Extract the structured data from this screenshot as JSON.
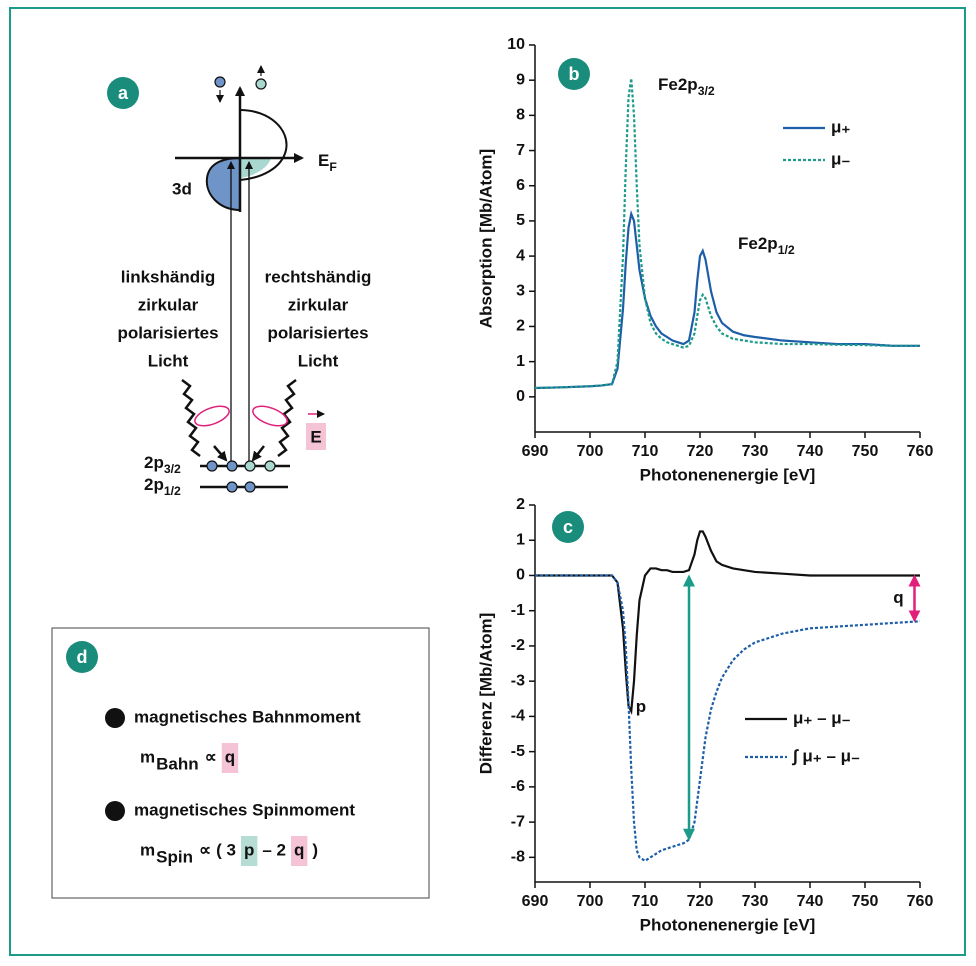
{
  "diagram": {
    "label": "a",
    "fermi": {
      "main": "E",
      "sub": "F"
    },
    "band": "3d",
    "left_light": [
      "linkshändig",
      "zirkular",
      "polarisiertes",
      "Licht"
    ],
    "right_light": [
      "rechtshändig",
      "zirkular",
      "polarisiertes",
      "Licht"
    ],
    "field": "E",
    "levels": [
      {
        "main": "2p",
        "sub": "3/2"
      },
      {
        "main": "2p",
        "sub": "1/2"
      }
    ]
  },
  "chart_data": [
    {
      "type": "line",
      "label": "b",
      "xlabel": "Photonenenergie [eV]",
      "ylabel": "Absorption [Mb/Atom]",
      "x": [
        690,
        695,
        700,
        702,
        704,
        705,
        706,
        706.5,
        707,
        707.5,
        708,
        708.5,
        709,
        710,
        711,
        712,
        713,
        714,
        715,
        716,
        717,
        718,
        719,
        719.5,
        720,
        720.5,
        721,
        722,
        723,
        724,
        726,
        728,
        730,
        735,
        740,
        745,
        750,
        755,
        760
      ],
      "xlim": [
        690,
        760
      ],
      "xticks": [
        690,
        700,
        710,
        720,
        730,
        740,
        750,
        760
      ],
      "ylim": [
        -1,
        10
      ],
      "yticks": [
        0,
        1,
        2,
        3,
        4,
        5,
        6,
        7,
        8,
        9,
        10
      ],
      "series": [
        {
          "name": "μ₊",
          "color": "#1d5ea8",
          "dash": false,
          "values": [
            0.25,
            0.27,
            0.3,
            0.32,
            0.36,
            0.8,
            2.5,
            3.8,
            4.8,
            5.2,
            5.0,
            4.3,
            3.6,
            2.8,
            2.3,
            2.0,
            1.8,
            1.7,
            1.6,
            1.55,
            1.5,
            1.6,
            2.4,
            3.3,
            4.0,
            4.15,
            3.9,
            3.0,
            2.4,
            2.1,
            1.85,
            1.75,
            1.7,
            1.6,
            1.55,
            1.5,
            1.5,
            1.45,
            1.45
          ]
        },
        {
          "name": "μ₋",
          "color": "#1c9a8a",
          "dash": true,
          "values": [
            0.25,
            0.27,
            0.3,
            0.32,
            0.36,
            1.0,
            4.0,
            6.5,
            8.5,
            9.05,
            8.0,
            6.0,
            4.3,
            2.8,
            2.1,
            1.8,
            1.65,
            1.55,
            1.5,
            1.45,
            1.4,
            1.45,
            1.8,
            2.3,
            2.75,
            2.9,
            2.8,
            2.3,
            2.0,
            1.8,
            1.65,
            1.6,
            1.55,
            1.5,
            1.5,
            1.48,
            1.47,
            1.45,
            1.45
          ]
        }
      ],
      "annotations": [
        {
          "text": "Fe2p",
          "sub": "3/2"
        },
        {
          "text": "Fe2p",
          "sub": "1/2"
        }
      ]
    },
    {
      "type": "line",
      "label": "c",
      "xlabel": "Photonenenergie [eV]",
      "ylabel": "Differenz [Mb/Atom]",
      "x": [
        690,
        695,
        700,
        702,
        704,
        705,
        706,
        706.5,
        707,
        707.5,
        708,
        708.5,
        709,
        710,
        711,
        712,
        713,
        714,
        715,
        716,
        717,
        718,
        719,
        719.5,
        720,
        720.5,
        721,
        722,
        723,
        724,
        726,
        728,
        730,
        735,
        740,
        745,
        750,
        755,
        760
      ],
      "xlim": [
        690,
        760
      ],
      "xticks": [
        690,
        700,
        710,
        720,
        730,
        740,
        750,
        760
      ],
      "ylim": [
        -8.7,
        2
      ],
      "yticks": [
        -8,
        -7,
        -6,
        -5,
        -4,
        -3,
        -2,
        -1,
        0,
        1,
        2
      ],
      "series": [
        {
          "name": "μ₊ – μ₋",
          "color": "#111111",
          "dash": false,
          "values": [
            0,
            0,
            0,
            0,
            0,
            -0.2,
            -1.5,
            -2.7,
            -3.7,
            -3.85,
            -3.0,
            -1.7,
            -0.7,
            0,
            0.2,
            0.2,
            0.15,
            0.15,
            0.1,
            0.1,
            0.1,
            0.15,
            0.6,
            1.0,
            1.25,
            1.25,
            1.1,
            0.7,
            0.4,
            0.3,
            0.2,
            0.15,
            0.1,
            0.05,
            0,
            0,
            0,
            0,
            0
          ]
        },
        {
          "name": "∫ μ₊ – μ₋",
          "color": "#1d5ea8",
          "dash": true,
          "values": [
            0,
            0,
            0,
            0,
            0,
            -0.2,
            -1.0,
            -2.0,
            -3.6,
            -5.5,
            -7.0,
            -7.8,
            -8.0,
            -8.1,
            -8.0,
            -7.9,
            -7.8,
            -7.75,
            -7.7,
            -7.65,
            -7.6,
            -7.5,
            -7.0,
            -6.4,
            -5.8,
            -5.2,
            -4.6,
            -3.8,
            -3.3,
            -2.9,
            -2.4,
            -2.1,
            -1.9,
            -1.65,
            -1.5,
            -1.45,
            -1.4,
            -1.35,
            -1.3
          ]
        }
      ],
      "brackets": [
        {
          "label": "p",
          "x": 718,
          "from": 0,
          "to": -7.5,
          "color": "#1c9a8a"
        },
        {
          "label": "q",
          "x": 759,
          "from": 0,
          "to": -1.3,
          "color": "#e0207a"
        }
      ]
    }
  ],
  "box": {
    "label": "d",
    "items": [
      {
        "title": "magnetisches Bahnmoment",
        "symbol": "m",
        "sub": "Bahn",
        "formula": [
          {
            "text": "∝"
          },
          {
            "text": "q",
            "mark": "#f4c3d5"
          }
        ]
      },
      {
        "title": "magnetisches Spinmoment",
        "symbol": "m",
        "sub": "Spin",
        "formula": [
          {
            "text": "∝"
          },
          {
            "text": "( 3"
          },
          {
            "text": "p",
            "mark": "#b5ddd3"
          },
          {
            "text": "– 2"
          },
          {
            "text": "q",
            "mark": "#f4c3d5"
          },
          {
            "text": ")"
          }
        ]
      }
    ]
  }
}
